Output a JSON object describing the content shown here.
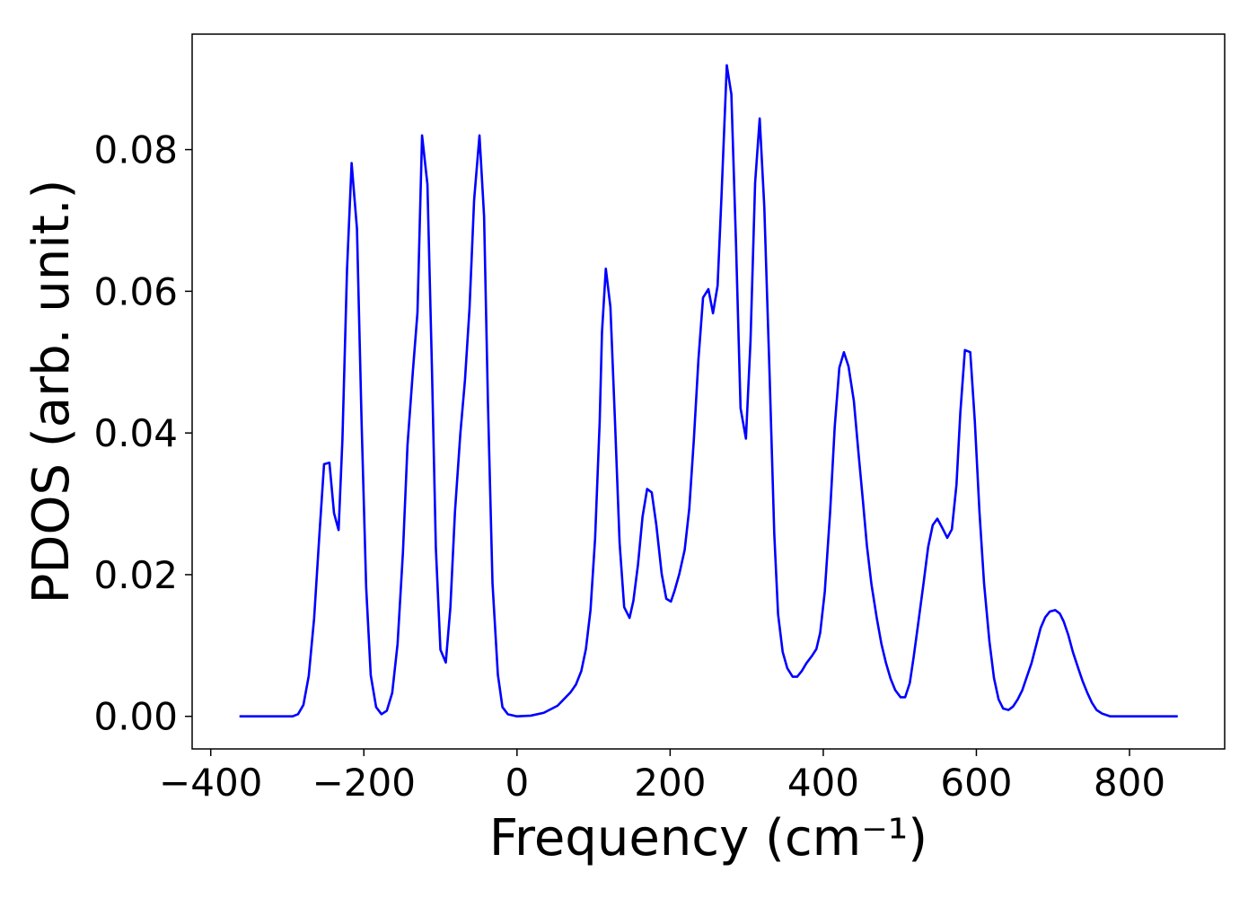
{
  "chart_data": {
    "type": "line",
    "xlabel": "Frequency (cm⁻¹)",
    "ylabel": "PDOS (arb. unit.)",
    "color": "#0000ff",
    "xlim": [
      -424.3,
      924.3
    ],
    "ylim": [
      -0.0046,
      0.0963
    ],
    "xticks": [
      {
        "value": -400,
        "label": "−400"
      },
      {
        "value": -200,
        "label": "−200"
      },
      0,
      200,
      400,
      600,
      800
    ],
    "yticks": [
      {
        "value": 0,
        "label": "0.00"
      },
      0.02,
      0.04,
      0.06,
      0.08
    ],
    "x": [
      -362.5,
      -293,
      -286,
      -279,
      -272,
      -265,
      -258,
      -252,
      -245,
      -239,
      -233,
      -228,
      -222,
      -216,
      -209,
      -203,
      -197,
      -191,
      -184,
      -177,
      -170,
      -163,
      -156,
      -149,
      -143,
      -136,
      -130,
      -124,
      -117,
      -111,
      -106,
      -100,
      -93,
      -87,
      -81,
      -74,
      -68,
      -62,
      -56,
      -49,
      -43,
      -38,
      -32,
      -25,
      -19,
      -12,
      0,
      18,
      35,
      53,
      70,
      77,
      84,
      90,
      96,
      102,
      108,
      111,
      116,
      122,
      128,
      134,
      140,
      147,
      152,
      158,
      164,
      170,
      176,
      182,
      189,
      195,
      201,
      206,
      212,
      219,
      225,
      231,
      237,
      243,
      250,
      256,
      262,
      267,
      274,
      280,
      286,
      292,
      299,
      305,
      311,
      317,
      323,
      330,
      336,
      341,
      347,
      353,
      360,
      366,
      372,
      378,
      385,
      391,
      396,
      402,
      409,
      415,
      421,
      427,
      433,
      440,
      446,
      452,
      457,
      463,
      470,
      476,
      482,
      488,
      494,
      501,
      507,
      513,
      518,
      524,
      531,
      537,
      543,
      549,
      555,
      562,
      568,
      574,
      579,
      585,
      592,
      598,
      604,
      610,
      617,
      623,
      629,
      635,
      642,
      648,
      654,
      660,
      665,
      672,
      678,
      684,
      690,
      696,
      703,
      709,
      714,
      720,
      726,
      733,
      739,
      745,
      751,
      757,
      764,
      775,
      863
    ],
    "values": [
      0,
      0,
      0.0003,
      0.0016,
      0.0057,
      0.0138,
      0.0258,
      0.0356,
      0.0358,
      0.0287,
      0.0263,
      0.0391,
      0.0631,
      0.0781,
      0.0688,
      0.0416,
      0.0182,
      0.0058,
      0.0013,
      0.0003,
      0.0008,
      0.0033,
      0.0102,
      0.0231,
      0.0383,
      0.0487,
      0.057,
      0.082,
      0.0751,
      0.0487,
      0.0238,
      0.0094,
      0.0076,
      0.0154,
      0.0289,
      0.0399,
      0.0474,
      0.0576,
      0.0729,
      0.082,
      0.0706,
      0.0445,
      0.0188,
      0.0059,
      0.0013,
      0.0003,
      0,
      0.0001,
      0.0005,
      0.0015,
      0.0034,
      0.0045,
      0.0064,
      0.0095,
      0.015,
      0.0251,
      0.0416,
      0.0542,
      0.0632,
      0.0578,
      0.0416,
      0.0245,
      0.0154,
      0.0139,
      0.0163,
      0.0214,
      0.0282,
      0.0321,
      0.0316,
      0.027,
      0.0201,
      0.0166,
      0.0162,
      0.0178,
      0.0201,
      0.0235,
      0.0293,
      0.0391,
      0.0504,
      0.0591,
      0.0603,
      0.0569,
      0.0608,
      0.0732,
      0.0919,
      0.0878,
      0.0669,
      0.0435,
      0.0392,
      0.053,
      0.0753,
      0.0844,
      0.0719,
      0.0479,
      0.0258,
      0.0144,
      0.0091,
      0.0068,
      0.0056,
      0.0056,
      0.0064,
      0.0075,
      0.0085,
      0.0095,
      0.0118,
      0.0176,
      0.0289,
      0.0409,
      0.0492,
      0.0514,
      0.0494,
      0.0445,
      0.0372,
      0.0302,
      0.0241,
      0.0186,
      0.0138,
      0.0102,
      0.0075,
      0.0053,
      0.0037,
      0.0027,
      0.0027,
      0.0047,
      0.0083,
      0.0131,
      0.0188,
      0.0239,
      0.027,
      0.0279,
      0.0267,
      0.0252,
      0.0264,
      0.0327,
      0.0428,
      0.0517,
      0.0514,
      0.0416,
      0.0289,
      0.0188,
      0.0106,
      0.0054,
      0.0024,
      0.0011,
      0.0009,
      0.0014,
      0.0024,
      0.0037,
      0.0053,
      0.0075,
      0.01,
      0.0125,
      0.014,
      0.0148,
      0.015,
      0.0145,
      0.0134,
      0.0115,
      0.0091,
      0.0068,
      0.0049,
      0.0033,
      0.0019,
      0.0009,
      0.0004,
      0,
      0
    ]
  }
}
